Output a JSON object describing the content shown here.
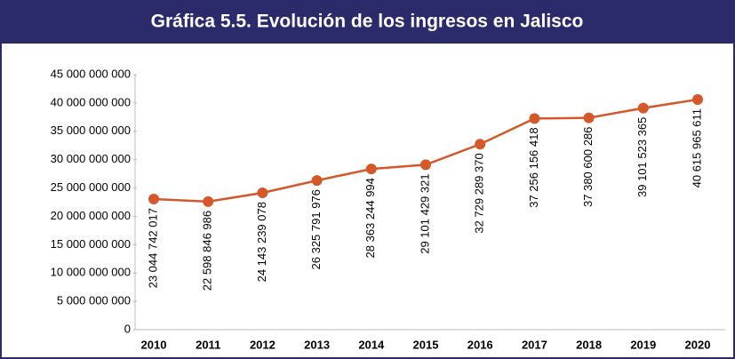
{
  "chart_data": {
    "type": "line",
    "title": "Gráfica 5.5. Evolución de los ingresos en Jalisco",
    "categories": [
      "2010",
      "2011",
      "2012",
      "2013",
      "2014",
      "2015",
      "2016",
      "2017",
      "2018",
      "2019",
      "2020"
    ],
    "series": [
      {
        "name": "Ingresos",
        "color": "#d4582a",
        "values": [
          23044742017,
          22598846986,
          24143239078,
          26325791976,
          28363244994,
          29101429321,
          32729289370,
          37256156418,
          37380600286,
          39101523365,
          40615965611
        ],
        "value_labels": [
          "23 044 742 017",
          "22 598 846 986",
          "24 143 239 078",
          "26 325 791 976",
          "28 363 244 994",
          "29 101 429 321",
          "32 729 289 370",
          "37 256 156 418",
          "37 380 600 286",
          "39 101 523 365",
          "40 615 965 611"
        ]
      }
    ],
    "ylim": [
      0,
      45000000000
    ],
    "yticks": [
      0,
      {
        "value": 5000000000,
        "label": "5 000 000 000"
      },
      {
        "value": 10000000000,
        "label": "10 000 000 000"
      },
      {
        "value": 15000000000,
        "label": "15 000 000 000"
      },
      {
        "value": 20000000000,
        "label": "20 000 000 000"
      },
      {
        "value": 25000000000,
        "label": "25 000 000 000"
      },
      {
        "value": 30000000000,
        "label": "30 000 000 000"
      },
      {
        "value": 35000000000,
        "label": "35 000 000 000"
      },
      {
        "value": 40000000000,
        "label": "40 000 000 000"
      },
      {
        "value": 45000000000,
        "label": "45 000 000 000"
      }
    ]
  }
}
